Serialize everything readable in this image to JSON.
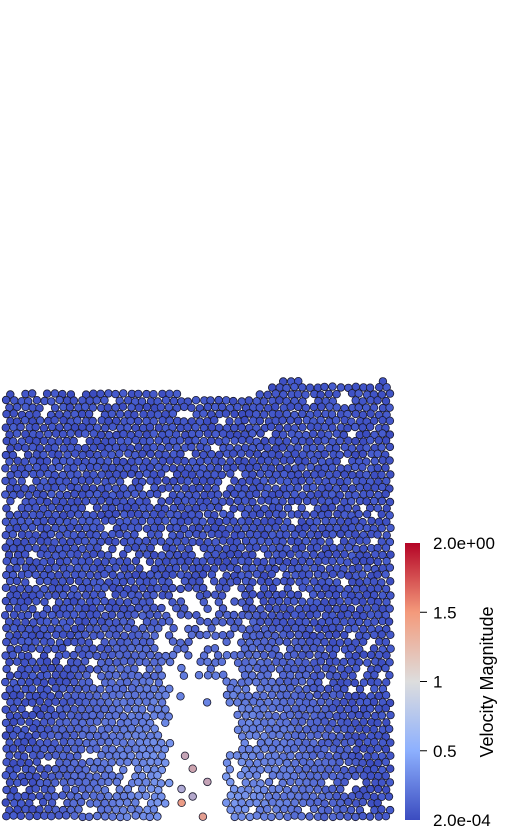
{
  "colorbar": {
    "title": "Velocity Magnitude",
    "max_label": "2.0e+00",
    "min_label": "2.0e-04",
    "ticks": [
      {
        "value": 1.5,
        "label": "1.5"
      },
      {
        "value": 1.0,
        "label": "1"
      },
      {
        "value": 0.5,
        "label": "0.5"
      }
    ],
    "range": [
      0.0002,
      2.0
    ],
    "colormap": [
      "#3b4cc0",
      "#8db0fe",
      "#dddddd",
      "#f49a7b",
      "#b40426"
    ]
  },
  "particle_edge_color": "#1a1a2e"
}
